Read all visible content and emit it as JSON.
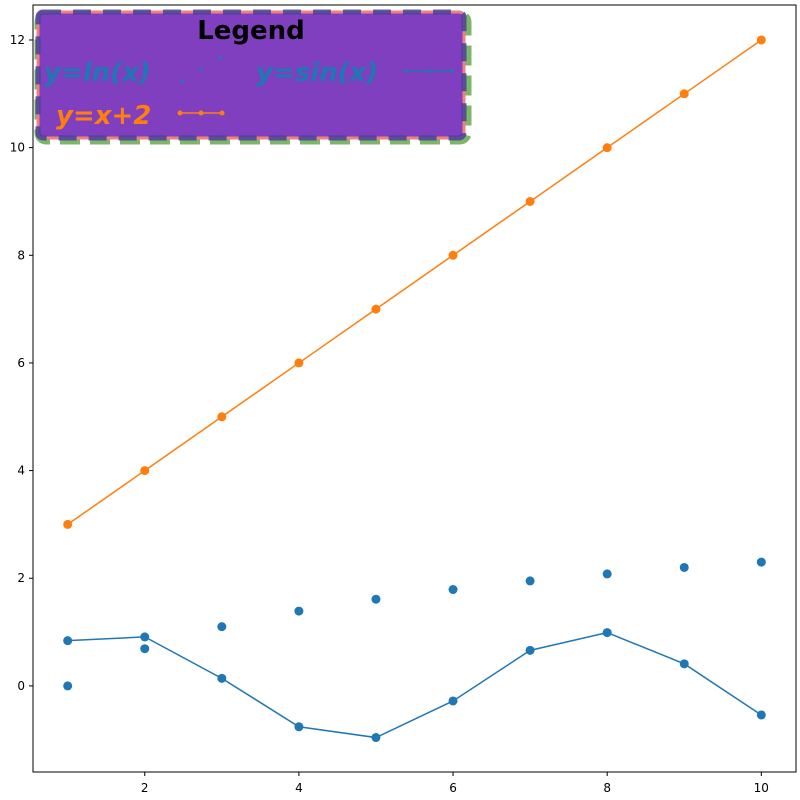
{
  "chart_data": {
    "type": "line",
    "xlim": [
      0.55,
      10.45
    ],
    "ylim": [
      -1.6,
      12.65
    ],
    "xticks": [
      2,
      4,
      6,
      8,
      10
    ],
    "yticks": [
      0,
      2,
      4,
      6,
      8,
      10,
      12
    ],
    "grid": false,
    "legend": {
      "title": "Legend",
      "placement": "top-left",
      "facecolor": "#7f3fbf",
      "edgecolor_outer": "#66a84f",
      "edgecolor_inner": "#f08080",
      "inner_dash_color": "#3a3f9a"
    },
    "series": [
      {
        "name": "y=ln(x)",
        "style": "scatter",
        "color": "#1f77b4",
        "x": [
          1,
          2,
          3,
          4,
          5,
          6,
          7,
          8,
          9,
          10
        ],
        "y": [
          0.0,
          0.69,
          1.1,
          1.39,
          1.61,
          1.79,
          1.95,
          2.08,
          2.2,
          2.3
        ]
      },
      {
        "name": "y=sin(x)",
        "style": "line-marker",
        "color": "#1f77b4",
        "x": [
          1,
          2,
          3,
          4,
          5,
          6,
          7,
          8,
          9,
          10
        ],
        "y": [
          0.84,
          0.91,
          0.14,
          -0.76,
          -0.96,
          -0.28,
          0.66,
          0.99,
          0.41,
          -0.54
        ]
      },
      {
        "name": "y=x+2",
        "style": "line-marker",
        "color": "#ff7f0e",
        "x": [
          1,
          2,
          3,
          4,
          5,
          6,
          7,
          8,
          9,
          10
        ],
        "y": [
          3,
          4,
          5,
          6,
          7,
          8,
          9,
          10,
          11,
          12
        ]
      }
    ]
  }
}
